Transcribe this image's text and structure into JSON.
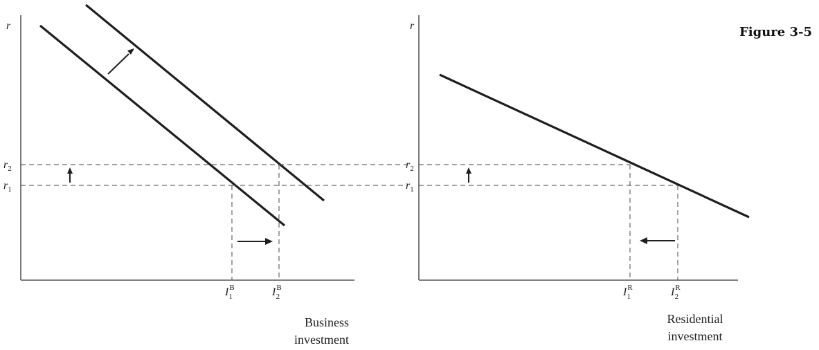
{
  "figure": {
    "title": "Figure 3-5"
  },
  "left_panel": {
    "y_axis_label": "r",
    "r2_label": "r",
    "r2_sub": "2",
    "r1_label": "r",
    "r1_sub": "1",
    "i1_label": "I",
    "i1_sub": "1",
    "i1_sup": "B",
    "i2_label": "I",
    "i2_sub": "2",
    "i2_sup": "B",
    "x_title_line1": "Business",
    "x_title_line2": "investment"
  },
  "right_panel": {
    "y_axis_label": "r",
    "r2_label": "r",
    "r2_sub": "2",
    "r1_label": "r",
    "r1_sub": "1",
    "i1_label": "I",
    "i1_sub": "1",
    "i1_sup": "R",
    "i2_label": "I",
    "i2_sub": "2",
    "i2_sup": "R",
    "x_title_line1": "Residential",
    "x_title_line2": "investment"
  }
}
